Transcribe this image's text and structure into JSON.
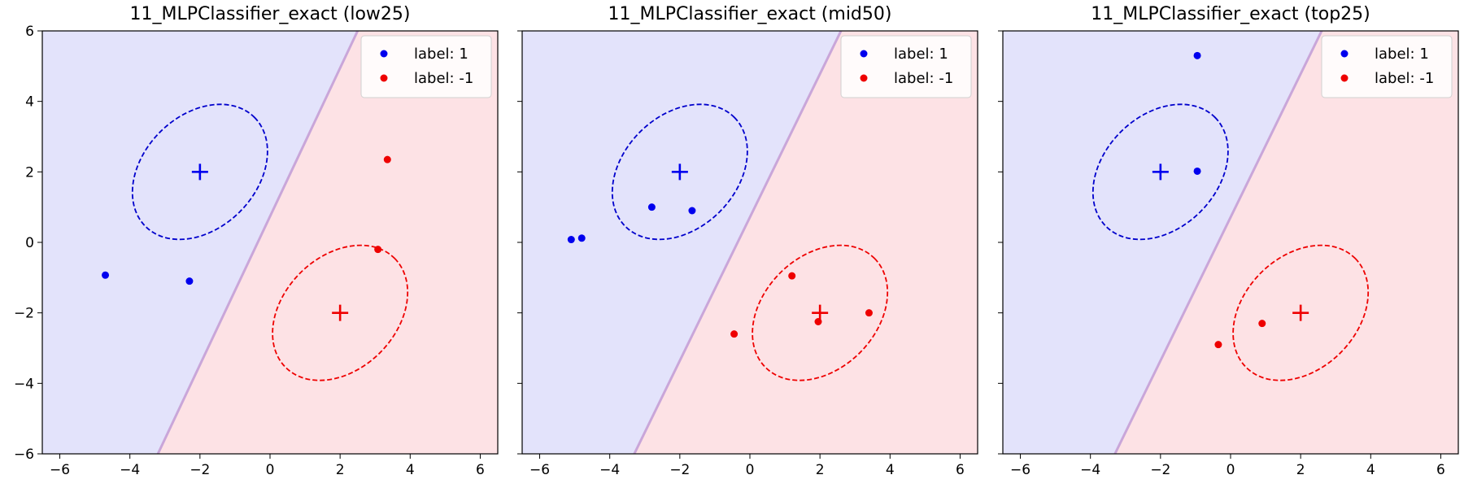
{
  "chart_data": [
    {
      "type": "scatter",
      "title": "11_MLPClassifier_exact (low25)",
      "xlim": [
        -6.5,
        6.5
      ],
      "ylim": [
        -6,
        6
      ],
      "xticks": [
        -6,
        -4,
        -2,
        0,
        2,
        4,
        6
      ],
      "yticks": [
        -6,
        -4,
        -2,
        0,
        2,
        4,
        6
      ],
      "show_yticklabels": true,
      "boundary": [
        [
          -3.2,
          -6
        ],
        [
          2.5,
          6
        ]
      ],
      "background": {
        "left": "#e3e3fb",
        "right": "#fde2e5"
      },
      "centers": [
        {
          "label": "1",
          "x": -2,
          "y": 2,
          "color": "#0000ee"
        },
        {
          "label": "-1",
          "x": 2,
          "y": -2,
          "color": "#ee0000"
        }
      ],
      "ellipses": [
        {
          "label": "1",
          "cx": -2,
          "cy": 2,
          "rx": 2.2,
          "ry": 1.6,
          "angle": 45,
          "color": "#0000cc"
        },
        {
          "label": "-1",
          "cx": 2,
          "cy": -2,
          "rx": 2.2,
          "ry": 1.6,
          "angle": 45,
          "color": "#ee0000"
        }
      ],
      "series": [
        {
          "name": "label: 1",
          "color": "#0000ee",
          "points": [
            [
              -4.7,
              -0.93
            ],
            [
              -2.3,
              -1.1
            ]
          ]
        },
        {
          "name": "label: -1",
          "color": "#ee0000",
          "points": [
            [
              3.35,
              2.35
            ],
            [
              3.08,
              -0.2
            ]
          ]
        }
      ],
      "legend": {
        "position": "top-right",
        "entries": [
          "label: 1",
          "label: -1"
        ]
      }
    },
    {
      "type": "scatter",
      "title": "11_MLPClassifier_exact (mid50)",
      "xlim": [
        -6.5,
        6.5
      ],
      "ylim": [
        -6,
        6
      ],
      "xticks": [
        -6,
        -4,
        -2,
        0,
        2,
        4,
        6
      ],
      "yticks": [
        -6,
        -4,
        -2,
        0,
        2,
        4,
        6
      ],
      "show_yticklabels": false,
      "boundary": [
        [
          -3.3,
          -6
        ],
        [
          2.6,
          6
        ]
      ],
      "background": {
        "left": "#e3e3fb",
        "right": "#fde2e5"
      },
      "centers": [
        {
          "label": "1",
          "x": -2,
          "y": 2,
          "color": "#0000ee"
        },
        {
          "label": "-1",
          "x": 2,
          "y": -2,
          "color": "#ee0000"
        }
      ],
      "ellipses": [
        {
          "label": "1",
          "cx": -2,
          "cy": 2,
          "rx": 2.2,
          "ry": 1.6,
          "angle": 45,
          "color": "#0000cc"
        },
        {
          "label": "-1",
          "cx": 2,
          "cy": -2,
          "rx": 2.2,
          "ry": 1.6,
          "angle": 45,
          "color": "#ee0000"
        }
      ],
      "series": [
        {
          "name": "label: 1",
          "color": "#0000ee",
          "points": [
            [
              -5.1,
              0.08
            ],
            [
              -4.8,
              0.12
            ],
            [
              -2.8,
              1.0
            ],
            [
              -1.65,
              0.9
            ]
          ]
        },
        {
          "name": "label: -1",
          "color": "#ee0000",
          "points": [
            [
              -0.45,
              -2.6
            ],
            [
              1.2,
              -0.95
            ],
            [
              1.95,
              -2.25
            ],
            [
              3.4,
              -2.0
            ]
          ]
        }
      ],
      "legend": {
        "position": "top-right",
        "entries": [
          "label: 1",
          "label: -1"
        ]
      }
    },
    {
      "type": "scatter",
      "title": "11_MLPClassifier_exact (top25)",
      "xlim": [
        -6.5,
        6.5
      ],
      "ylim": [
        -6,
        6
      ],
      "xticks": [
        -6,
        -4,
        -2,
        0,
        2,
        4,
        6
      ],
      "yticks": [
        -6,
        -4,
        -2,
        0,
        2,
        4,
        6
      ],
      "show_yticklabels": false,
      "boundary": [
        [
          -3.3,
          -6
        ],
        [
          2.6,
          6
        ]
      ],
      "background": {
        "left": "#e3e3fb",
        "right": "#fde2e5"
      },
      "centers": [
        {
          "label": "1",
          "x": -2,
          "y": 2,
          "color": "#0000ee"
        },
        {
          "label": "-1",
          "x": 2,
          "y": -2,
          "color": "#ee0000"
        }
      ],
      "ellipses": [
        {
          "label": "1",
          "cx": -2,
          "cy": 2,
          "rx": 2.2,
          "ry": 1.6,
          "angle": 45,
          "color": "#0000cc"
        },
        {
          "label": "-1",
          "cx": 2,
          "cy": -2,
          "rx": 2.2,
          "ry": 1.6,
          "angle": 45,
          "color": "#ee0000"
        }
      ],
      "series": [
        {
          "name": "label: 1",
          "color": "#0000ee",
          "points": [
            [
              -0.95,
              5.3
            ],
            [
              -0.95,
              2.02
            ]
          ]
        },
        {
          "name": "label: -1",
          "color": "#ee0000",
          "points": [
            [
              -0.35,
              -2.9
            ],
            [
              0.9,
              -2.3
            ]
          ]
        }
      ],
      "legend": {
        "position": "top-right",
        "entries": [
          "label: 1",
          "label: -1"
        ]
      }
    }
  ]
}
